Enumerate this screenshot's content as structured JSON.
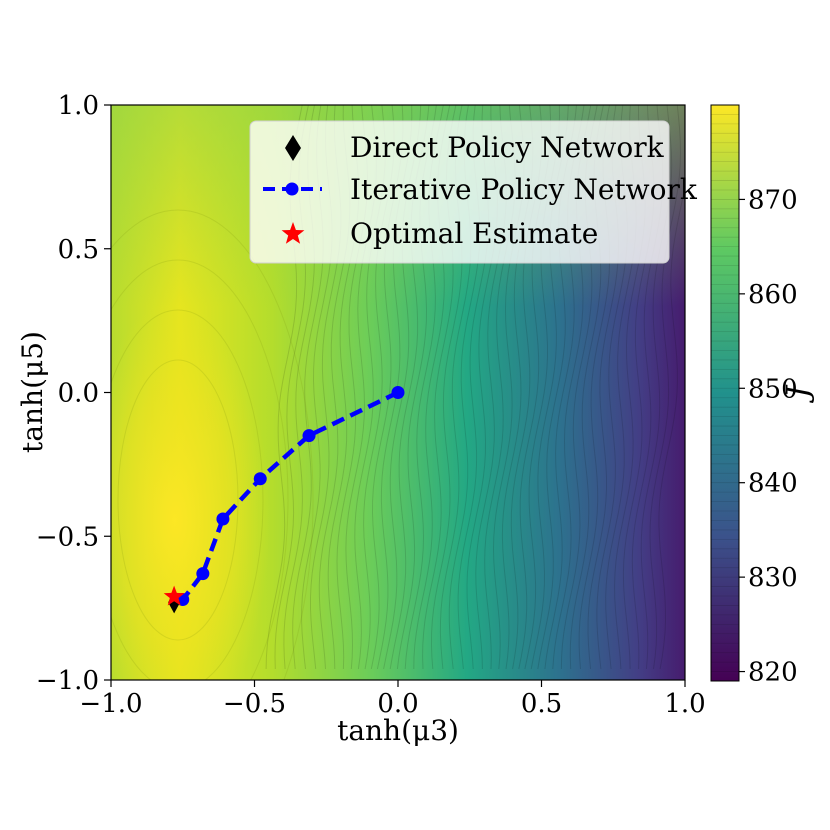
{
  "chart_data": {
    "type": "contour",
    "xlabel": "tanh(μ3)",
    "ylabel": "tanh(μ5)",
    "xlim": [
      -1.0,
      1.0
    ],
    "ylim": [
      -1.0,
      1.0
    ],
    "x_ticks": [
      -1.0,
      -0.5,
      0.0,
      0.5,
      1.0
    ],
    "x_tick_labels": [
      "−1.0",
      "−0.5",
      "0.0",
      "0.5",
      "1.0"
    ],
    "y_ticks": [
      -1.0,
      -0.5,
      0.0,
      0.5,
      1.0
    ],
    "y_tick_labels": [
      "−1.0",
      "−0.5",
      "0.0",
      "0.5",
      "1.0"
    ],
    "colorbar": {
      "label": "J",
      "range": [
        819,
        880
      ],
      "ticks": [
        820,
        830,
        840,
        850,
        860,
        870
      ],
      "tick_labels": [
        "820",
        "830",
        "840",
        "850",
        "860",
        "870"
      ],
      "colormap": [
        "#440154",
        "#3b528b",
        "#21918c",
        "#5ec962",
        "#fde725"
      ]
    },
    "legend": {
      "location": "upper right",
      "entries": [
        {
          "label": "Direct Policy Network",
          "marker": "diamond",
          "color": "#000000"
        },
        {
          "label": "Iterative Policy Network",
          "marker": "circle-dashed-line",
          "color": "#0000ff"
        },
        {
          "label": "Optimal Estimate",
          "marker": "star",
          "color": "#ff0000"
        }
      ]
    },
    "series": [
      {
        "name": "Iterative Policy Network",
        "color": "#0000ff",
        "x": [
          0.0,
          -0.31,
          -0.48,
          -0.61,
          -0.68,
          -0.75
        ],
        "y": [
          0.0,
          -0.15,
          -0.3,
          -0.44,
          -0.63,
          -0.72
        ]
      },
      {
        "name": "Direct Policy Network",
        "color": "#000000",
        "x": [
          -0.78
        ],
        "y": [
          -0.73
        ]
      },
      {
        "name": "Optimal Estimate",
        "color": "#ff0000",
        "x": [
          -0.78
        ],
        "y": [
          -0.71
        ]
      }
    ]
  }
}
